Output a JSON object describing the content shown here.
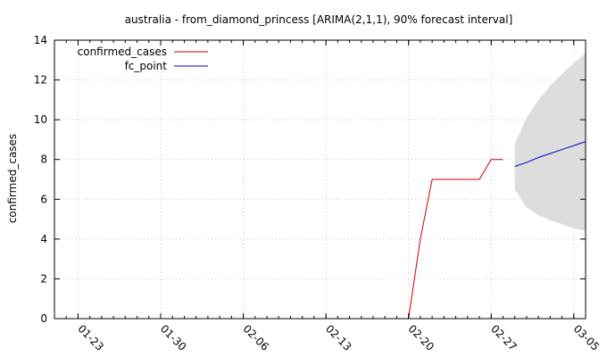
{
  "chart_data": {
    "type": "line",
    "title": "australia - from_diamond_princess [ARIMA(2,1,1), 90% forecast interval]",
    "ylabel": "confirmed_cases",
    "xlabel": "",
    "ylim": [
      0,
      14
    ],
    "yticks": [
      0,
      2,
      4,
      6,
      8,
      10,
      12,
      14
    ],
    "xlim": [
      "2020-01-21",
      "2020-03-06"
    ],
    "xticks": [
      "2020-01-23",
      "2020-01-30",
      "2020-02-06",
      "2020-02-13",
      "2020-02-20",
      "2020-02-27",
      "2020-03-05"
    ],
    "xtick_labels": [
      "01-23",
      "01-30",
      "02-06",
      "02-13",
      "02-20",
      "02-27",
      "03-05"
    ],
    "grid": true,
    "legend_position": "top-left",
    "series": [
      {
        "name": "confirmed_cases",
        "color": "#cc0000",
        "x": [
          "2020-02-20",
          "2020-02-21",
          "2020-02-22",
          "2020-02-23",
          "2020-02-24",
          "2020-02-25",
          "2020-02-26",
          "2020-02-27",
          "2020-02-28"
        ],
        "y": [
          0,
          4,
          7,
          7,
          7,
          7,
          7,
          8,
          8
        ]
      },
      {
        "name": "fc_point",
        "color": "#0000cc",
        "x": [
          "2020-02-29",
          "2020-03-01",
          "2020-03-02",
          "2020-03-03",
          "2020-03-04",
          "2020-03-05",
          "2020-03-06"
        ],
        "y": [
          7.65,
          7.85,
          8.1,
          8.3,
          8.5,
          8.7,
          8.9
        ]
      }
    ],
    "forecast_interval": {
      "color": "#dddddd",
      "x": [
        "2020-02-29",
        "2020-03-01",
        "2020-03-02",
        "2020-03-03",
        "2020-03-04",
        "2020-03-05",
        "2020-03-06"
      ],
      "lower": [
        6.5,
        5.6,
        5.2,
        4.95,
        4.75,
        4.55,
        4.4
      ],
      "upper": [
        8.8,
        10.1,
        11.0,
        11.7,
        12.3,
        12.85,
        13.35
      ]
    }
  }
}
